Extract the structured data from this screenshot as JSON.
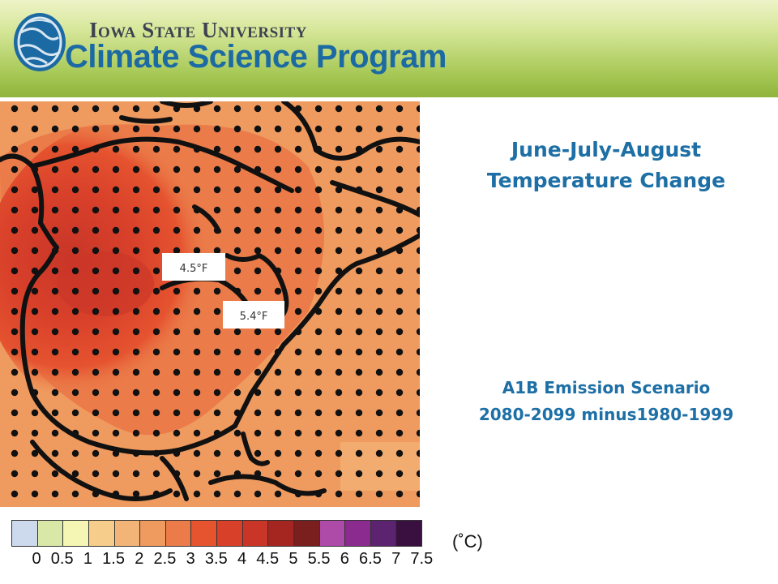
{
  "header": {
    "university": "Iowa State University",
    "program": "Climate Science Program",
    "background_color": "#a8c957",
    "logo_icon": "globe-logo-icon"
  },
  "map": {
    "region": "North America",
    "labels": [
      "4.5°F",
      "5.4°F"
    ]
  },
  "title": {
    "line1": "June-July-August",
    "line2": "Temperature Change"
  },
  "scenario": {
    "line1": "A1B Emission Scenario",
    "line2": "2080-2099 minus1980-1999"
  },
  "legend": {
    "unit": "(˚C)",
    "ticks": [
      "0",
      "0.5",
      "1",
      "1.5",
      "2",
      "2.5",
      "3",
      "3.5",
      "4",
      "4.5",
      "5",
      "5.5",
      "6",
      "6.5",
      "7",
      "7.5"
    ],
    "colors": [
      "#cdd9ec",
      "#d9e8a6",
      "#f6f6b4",
      "#f6cd8a",
      "#f3b477",
      "#ef9a5f",
      "#eb7b49",
      "#e5532f",
      "#d8402a",
      "#c93628",
      "#a52621",
      "#7b1f1e",
      "#ae4aa8",
      "#8c2b8f",
      "#5c2470",
      "#3a1040"
    ]
  },
  "text_color": "#1d6fa5"
}
